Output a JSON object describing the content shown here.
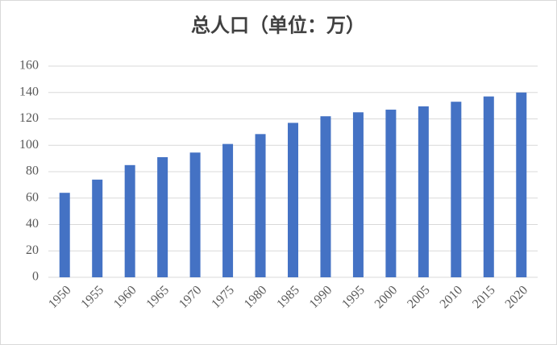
{
  "chart_data": {
    "type": "bar",
    "title": "总人口（单位：万）",
    "categories": [
      "1950",
      "1955",
      "1960",
      "1965",
      "1970",
      "1975",
      "1980",
      "1985",
      "1990",
      "1995",
      "2000",
      "2005",
      "2010",
      "2015",
      "2020"
    ],
    "values": [
      64,
      74,
      85,
      91,
      94.5,
      101,
      108.5,
      117,
      122,
      125,
      127,
      129.5,
      133,
      137,
      140
    ],
    "color": "#4472c4",
    "ylim": [
      0,
      160
    ],
    "yticks": [
      0,
      20,
      40,
      60,
      80,
      100,
      120,
      140,
      160
    ],
    "grid": true
  }
}
